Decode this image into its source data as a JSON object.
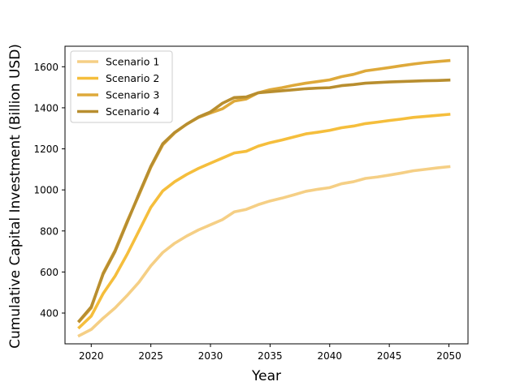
{
  "chart_data": {
    "type": "line",
    "xlabel": "Year",
    "ylabel": "Cumulative Capital Investment (Billion USD)",
    "xlim": [
      2017.8,
      2051.6
    ],
    "ylim": [
      250,
      1700
    ],
    "xticks": [
      2020,
      2025,
      2030,
      2035,
      2040,
      2045,
      2050
    ],
    "yticks": [
      400,
      600,
      800,
      1000,
      1200,
      1400,
      1600
    ],
    "grid": false,
    "legend_position": "top-left",
    "x": [
      2019,
      2020,
      2021,
      2022,
      2023,
      2024,
      2025,
      2026,
      2027,
      2028,
      2029,
      2030,
      2031,
      2032,
      2033,
      2034,
      2035,
      2036,
      2037,
      2038,
      2039,
      2040,
      2041,
      2042,
      2043,
      2044,
      2045,
      2046,
      2047,
      2048,
      2049,
      2050
    ],
    "series": [
      {
        "name": "Scenario 1",
        "color": "#f5cf85",
        "values": [
          290,
          320,
          375,
          425,
          485,
          550,
          630,
          695,
          740,
          775,
          805,
          830,
          855,
          893,
          905,
          928,
          946,
          960,
          976,
          993,
          1003,
          1011,
          1030,
          1040,
          1056,
          1063,
          1072,
          1082,
          1093,
          1100,
          1107,
          1113
        ]
      },
      {
        "name": "Scenario 2",
        "color": "#f5be3c",
        "values": [
          330,
          385,
          495,
          580,
          685,
          800,
          915,
          995,
          1040,
          1075,
          1105,
          1130,
          1155,
          1180,
          1188,
          1213,
          1230,
          1243,
          1258,
          1273,
          1281,
          1290,
          1303,
          1311,
          1323,
          1330,
          1338,
          1345,
          1353,
          1358,
          1363,
          1368
        ]
      },
      {
        "name": "Scenario 3",
        "color": "#dea93a",
        "values": [
          360,
          425,
          595,
          705,
          845,
          975,
          1110,
          1220,
          1278,
          1320,
          1353,
          1375,
          1395,
          1433,
          1443,
          1473,
          1488,
          1498,
          1510,
          1520,
          1528,
          1536,
          1552,
          1563,
          1580,
          1588,
          1596,
          1605,
          1613,
          1620,
          1625,
          1630
        ]
      },
      {
        "name": "Scenario 4",
        "color": "#b88e2f",
        "values": [
          362,
          430,
          590,
          700,
          840,
          980,
          1115,
          1225,
          1280,
          1320,
          1355,
          1380,
          1422,
          1450,
          1453,
          1473,
          1478,
          1483,
          1488,
          1493,
          1496,
          1498,
          1508,
          1513,
          1520,
          1523,
          1526,
          1528,
          1530,
          1532,
          1533,
          1535
        ]
      }
    ]
  }
}
